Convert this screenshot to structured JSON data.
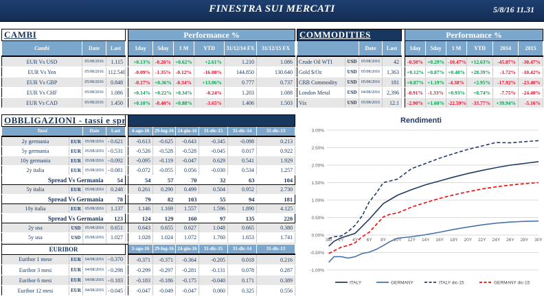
{
  "header": {
    "title": "FINESTRA SUI MERCATI",
    "datetime": "5/8/16 11.31"
  },
  "colors": {
    "navy": "#17375E",
    "steel": "#7BA7CC",
    "positive": "#00A14F",
    "negative": "#E8112D",
    "row_shade": "#E7E7E7",
    "italy": "#1F3864",
    "germany": "#4472A8",
    "germany_dic15": "#FF0000"
  },
  "cambi": {
    "title": "CAMBI",
    "performance_label": "Performance  %",
    "columns": [
      "Cambi",
      "Date",
      "Last",
      "1day",
      "5day",
      "1 M",
      "YTD",
      "31/12/14 FX",
      "31/12/15  FX"
    ],
    "rows": [
      {
        "name": "EUR Vs USD",
        "date": "05/08/2016",
        "last": "1.115",
        "perf": [
          "+0.13%",
          "-0.26%",
          "+0.62%",
          "+2.61%"
        ],
        "fx14": "1.210",
        "fx15": "1.086"
      },
      {
        "name": "EUR Vs Yen",
        "date": "05/08/2016",
        "last": "112.540",
        "perf": [
          "-0.09%",
          "-1.35%",
          "-0.12%",
          "-16.08%"
        ],
        "fx14": "144.850",
        "fx15": "130.640"
      },
      {
        "name": "EUR Vs GBP",
        "date": "05/08/2016",
        "last": "0.848",
        "perf": [
          "-0.17%",
          "+0.36%",
          "-0.34%",
          "+13.06%"
        ],
        "fx14": "0.777",
        "fx15": "0.737"
      },
      {
        "name": "EUR Vs CHF",
        "date": "05/08/2016",
        "last": "1.086",
        "perf": [
          "+0.14%",
          "+0.22%",
          "+0.34%",
          "-0.24%"
        ],
        "fx14": "1.203",
        "fx15": "1.088"
      },
      {
        "name": "EUR Vs CAD",
        "date": "05/08/2016",
        "last": "1.450",
        "perf": [
          "+0.10%",
          "-0.40%",
          "+0.88%",
          "-3.65%"
        ],
        "fx14": "1.406",
        "fx15": "1.503"
      }
    ]
  },
  "commodities": {
    "title": "COMMODITIES",
    "performance_label": "Performance  %",
    "columns": [
      "Date",
      "Last",
      "1day",
      "5day",
      "1 M",
      "YTD",
      "2014",
      "2015"
    ],
    "rows": [
      {
        "name": "Crude Oil WTI",
        "cur": "USD",
        "date": "05/08/2016",
        "last": "42",
        "perf": [
          "-0.50%",
          "+0.29%",
          "-10.47%",
          "+12.63%",
          "-45.87%",
          "-30.47%"
        ]
      },
      {
        "name": "Gold $/Oz",
        "cur": "USD",
        "date": "05/08/2016",
        "last": "1,363",
        "perf": [
          "+0.12%",
          "+0.87%",
          "+0.48%",
          "+28.39%",
          "-1.72%",
          "-10.42%"
        ]
      },
      {
        "name": "CRB Commodity",
        "cur": "USD",
        "date": "05/08/2016",
        "last": "181",
        "perf": [
          "+0.87%",
          "+1.19%",
          "-4.38%",
          "+2.95%",
          "-17.92%",
          "-23.40%"
        ]
      },
      {
        "name": "London Metal",
        "cur": "USD",
        "date": "04/08/2016",
        "last": "2,396",
        "perf": [
          "-0.91%",
          "-1.33%",
          "+0.93%",
          "+8.74%",
          "-7.75%",
          "-24.40%"
        ]
      },
      {
        "name": "Vix",
        "cur": "USD",
        "date": "05/08/2016",
        "last": "12.1",
        "perf": [
          "-2.90%",
          "+1.60%",
          "-22.59%",
          "-33.77%",
          "+39.94%",
          "-5.16%"
        ]
      }
    ]
  },
  "obbligazioni": {
    "title": "OBBLIGAZIONI - tassi e spread",
    "label_header": "Tassi",
    "date_header": "Date",
    "last_header": "Last",
    "columns": [
      "4-ago-16",
      "29-lug-16",
      "24-giu-16",
      "31-dic-15",
      "31-dic-14",
      "31-dic-13"
    ],
    "rows": [
      {
        "type": "data",
        "name": "2y germania",
        "cur": "EUR",
        "date": "05/08/2016",
        "last": "0.621",
        "neg": true,
        "vals": [
          "-0.613",
          "-0.625",
          "-0.643",
          "-0.345",
          "-0.098",
          "0.213"
        ],
        "shade": true
      },
      {
        "type": "data",
        "name": "5y germania",
        "cur": "EUR",
        "date": "05/08/2016",
        "last": "0.531",
        "neg": true,
        "vals": [
          "-0.526",
          "-0.528",
          "-0.528",
          "-0.045",
          "0.017",
          "0.922"
        ],
        "shade": false
      },
      {
        "type": "data",
        "name": "10y germania",
        "cur": "EUR",
        "date": "05/08/2016",
        "last": "0.092",
        "neg": true,
        "vals": [
          "-0.095",
          "-0.119",
          "-0.047",
          "0.629",
          "0.541",
          "1.929"
        ],
        "shade": true
      },
      {
        "type": "data",
        "name": "2y italia",
        "cur": "EUR",
        "date": "05/08/2016",
        "last": "0.081",
        "neg": true,
        "vals": [
          "-0.072",
          "-0.055",
          "0.056",
          "-0.030",
          "0.534",
          "1.257"
        ],
        "shade": false
      },
      {
        "type": "spread",
        "label": "Spread Vs Germania",
        "last": "54",
        "vals": [
          "54",
          "57",
          "70",
          "32",
          "63",
          "104"
        ]
      },
      {
        "type": "data",
        "name": "5y italia",
        "cur": "EUR",
        "date": "05/08/2016",
        "last": "0.248",
        "neg": false,
        "vals": [
          "0.261",
          "0.290",
          "0.499",
          "0.504",
          "0.952",
          "2.730"
        ],
        "shade": true
      },
      {
        "type": "spread",
        "label": "Spread Vs Germania",
        "last": "78",
        "vals": [
          "79",
          "82",
          "103",
          "55",
          "94",
          "181"
        ]
      },
      {
        "type": "data",
        "name": "10y italia",
        "cur": "EUR",
        "date": "05/08/2016",
        "last": "1.137",
        "neg": false,
        "vals": [
          "1.146",
          "1.169",
          "1.557",
          "1.596",
          "1.890",
          "4.125"
        ],
        "shade": true
      },
      {
        "type": "spread",
        "label": "Spread Vs Germania",
        "last": "123",
        "vals": [
          "124",
          "129",
          "160",
          "97",
          "135",
          "220"
        ]
      },
      {
        "type": "data",
        "name": "2y usa",
        "cur": "USD",
        "date": "05/08/2016",
        "last": "0.651",
        "neg": false,
        "vals": [
          "0.643",
          "0.655",
          "0.627",
          "1.048",
          "0.665",
          "0.380"
        ],
        "shade": true
      },
      {
        "type": "data",
        "name": "5y usa",
        "cur": "USD",
        "date": "05/08/2016",
        "last": "1.027",
        "neg": false,
        "vals": [
          "1.028",
          "1.024",
          "1.072",
          "1.760",
          "1.653",
          "1.741"
        ],
        "shade": false
      },
      {
        "type": "data",
        "name": "10y usa",
        "cur": "USD",
        "date": "05/08/2016",
        "last": "1.494",
        "neg": false,
        "vals": [
          "1.50",
          "1.45",
          "1.56",
          "2.27",
          "2.17",
          "3.03"
        ],
        "shade": true
      }
    ]
  },
  "euribor": {
    "title": "EURIBOR",
    "columns": [
      "3-ago-16",
      "29-lug-16",
      "24-giu-16",
      "31-dic-15",
      "31-dic-14",
      "31-dic-13"
    ],
    "rows": [
      {
        "name": "Euribor 1 mese",
        "cur": "EUR",
        "date": "04/08/2016",
        "last": "0.370",
        "neg": true,
        "vals": [
          "-0.371",
          "-0.371",
          "-0.364",
          "-0.205",
          "0.018",
          "0.216"
        ],
        "shade": true
      },
      {
        "name": "Euribor 3 mesi",
        "cur": "EUR",
        "date": "04/08/2016",
        "last": "0.298",
        "neg": true,
        "vals": [
          "-0.299",
          "-0.297",
          "-0.281",
          "-0.131",
          "0.078",
          "0.287"
        ],
        "shade": false
      },
      {
        "name": "Euribor 6 mesi",
        "cur": "EUR",
        "date": "04/08/2016",
        "last": "0.183",
        "neg": true,
        "vals": [
          "-0.183",
          "-0.186",
          "-0.175",
          "-0.040",
          "0.171",
          "0.389"
        ],
        "shade": true
      },
      {
        "name": "Euribor 12 mesi",
        "cur": "EUR",
        "date": "04/08/2016",
        "last": "0.045",
        "neg": true,
        "vals": [
          "-0.047",
          "-0.049",
          "-0.047",
          "0.060",
          "0.325",
          "0.556"
        ],
        "shade": false
      }
    ]
  },
  "chart_data": {
    "type": "line",
    "title": "Rendimenti",
    "xlabel": "",
    "ylabel": "",
    "ylim": [
      -1.0,
      3.0
    ],
    "ytick_step": 0.5,
    "grid": true,
    "legend_position": "bottom",
    "x_ticks": [
      "3M",
      "2Y",
      "4Y",
      "6Y",
      "8Y",
      "10Y",
      "12Y",
      "14Y",
      "16Y",
      "18Y",
      "20Y",
      "22Y",
      "24Y",
      "26Y",
      "28Y",
      "30Y"
    ],
    "x_tick_years": [
      0.25,
      2,
      4,
      6,
      8,
      10,
      12,
      14,
      16,
      18,
      20,
      22,
      24,
      26,
      28,
      30
    ],
    "x": [
      0.25,
      1,
      2,
      3,
      4,
      5,
      6,
      7,
      8,
      9,
      10,
      12,
      14,
      16,
      18,
      20,
      22,
      24,
      26,
      28,
      30
    ],
    "series": [
      {
        "name": "ITALY",
        "style": "solid",
        "color": "#1F3864",
        "values": [
          -0.32,
          -0.18,
          -0.08,
          -0.02,
          0.05,
          0.25,
          0.45,
          0.68,
          0.9,
          1.02,
          1.14,
          1.3,
          1.44,
          1.55,
          1.66,
          1.76,
          1.85,
          1.93,
          2.0,
          2.05,
          2.1
        ]
      },
      {
        "name": "GERMANY",
        "style": "solid",
        "color": "#4472A8",
        "values": [
          -0.78,
          -0.62,
          -0.62,
          -0.66,
          -0.62,
          -0.53,
          -0.49,
          -0.41,
          -0.3,
          -0.18,
          -0.09,
          -0.05,
          0.01,
          0.08,
          0.16,
          0.23,
          0.29,
          0.34,
          0.37,
          0.39,
          0.4
        ]
      },
      {
        "name": "ITALY dic-15",
        "style": "dashed",
        "color": "#1F3864",
        "values": [
          -0.1,
          -0.05,
          -0.03,
          0.1,
          0.28,
          0.55,
          0.95,
          1.2,
          1.5,
          1.55,
          1.6,
          1.9,
          2.05,
          2.2,
          2.33,
          2.45,
          2.55,
          2.65,
          2.64,
          2.67,
          2.7
        ]
      },
      {
        "name": "GERMANY dic-15",
        "style": "dashed",
        "color": "#FF0000",
        "values": [
          -0.53,
          -0.45,
          -0.35,
          -0.3,
          -0.22,
          -0.05,
          0.08,
          0.3,
          0.52,
          0.6,
          0.63,
          0.8,
          0.93,
          1.05,
          1.15,
          1.24,
          1.32,
          1.38,
          1.43,
          1.47,
          1.5
        ]
      }
    ]
  }
}
